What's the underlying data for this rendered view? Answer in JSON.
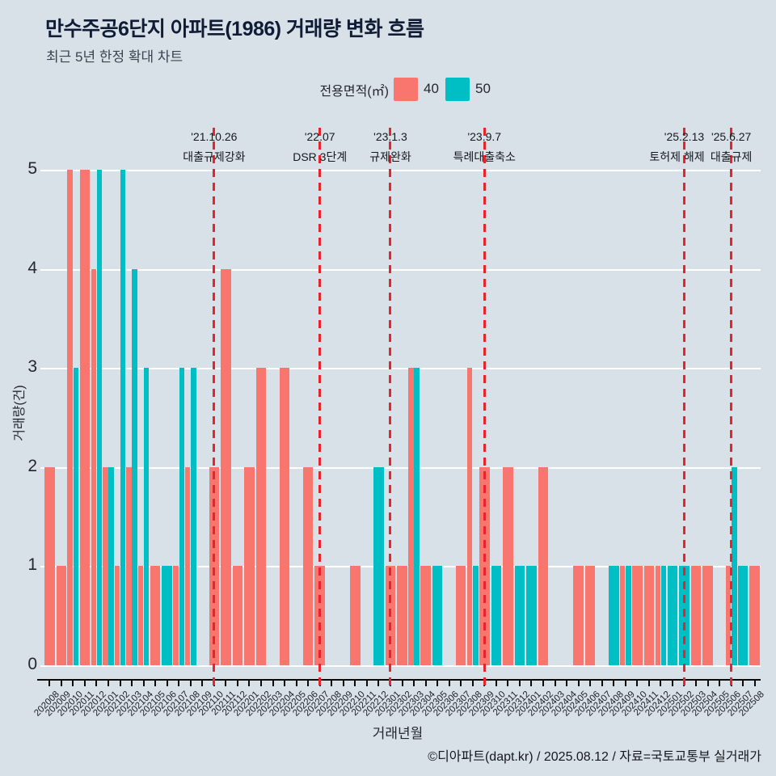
{
  "title": "만수주공6단지 아파트(1986) 거래량 변화 흐름",
  "subtitle": "최근 5년 한정 확대 차트",
  "legend": {
    "title": "전용면적(㎡)",
    "items": [
      {
        "label": "40",
        "color": "#f8766d"
      },
      {
        "label": "50",
        "color": "#00bfc4"
      }
    ]
  },
  "colors": {
    "series_40": "#f8766d",
    "series_50": "#00bfc4",
    "annotation_red": "#e8232b",
    "background": "#d9e1e8",
    "gridline": "#ffffff",
    "axis": "#0b0b0b"
  },
  "chart_data": {
    "type": "bar",
    "title": "만수주공6단지 아파트(1986) 거래량 변화 흐름",
    "xlabel": "거래년월",
    "ylabel": "거래량(건)",
    "ylim": [
      0,
      5
    ],
    "yticks": [
      0,
      1,
      2,
      3,
      4,
      5
    ],
    "grid": true,
    "legend_position": "top",
    "categories": [
      "202008",
      "202009",
      "202010",
      "202011",
      "202012",
      "202101",
      "202102",
      "202103",
      "202104",
      "202105",
      "202106",
      "202107",
      "202108",
      "202109",
      "202110",
      "202111",
      "202112",
      "202201",
      "202202",
      "202203",
      "202204",
      "202205",
      "202206",
      "202207",
      "202208",
      "202209",
      "202210",
      "202211",
      "202212",
      "202301",
      "202302",
      "202303",
      "202304",
      "202305",
      "202306",
      "202307",
      "202308",
      "202309",
      "202310",
      "202311",
      "202312",
      "202401",
      "202402",
      "202403",
      "202404",
      "202405",
      "202406",
      "202407",
      "202408",
      "202409",
      "202410",
      "202411",
      "202412",
      "202501",
      "202502",
      "202503",
      "202504",
      "202505",
      "202506",
      "202507",
      "202508"
    ],
    "series": [
      {
        "name": "40",
        "color": "#f8766d",
        "values": [
          2,
          1,
          5,
          5,
          4,
          2,
          1,
          2,
          1,
          1,
          0,
          1,
          2,
          0,
          2,
          4,
          1,
          2,
          3,
          0,
          3,
          0,
          2,
          1,
          0,
          0,
          1,
          0,
          0,
          1,
          1,
          3,
          1,
          0,
          0,
          1,
          3,
          2,
          0,
          2,
          0,
          0,
          2,
          0,
          0,
          1,
          1,
          0,
          0,
          1,
          1,
          1,
          1,
          0,
          0,
          1,
          1,
          0,
          1,
          0,
          1
        ]
      },
      {
        "name": "50",
        "color": "#00bfc4",
        "values": [
          0,
          0,
          3,
          0,
          5,
          2,
          5,
          4,
          3,
          0,
          1,
          3,
          3,
          0,
          0,
          0,
          0,
          0,
          0,
          0,
          0,
          0,
          0,
          0,
          0,
          0,
          0,
          0,
          2,
          0,
          0,
          3,
          0,
          1,
          0,
          0,
          1,
          0,
          1,
          0,
          1,
          1,
          0,
          0,
          0,
          0,
          0,
          0,
          1,
          1,
          0,
          0,
          1,
          1,
          1,
          0,
          0,
          0,
          2,
          1,
          0
        ]
      }
    ],
    "annotations": [
      {
        "month": "202110",
        "date": "'21.10.26",
        "label": "대출규제강화",
        "label_dx": 0
      },
      {
        "month": "202207",
        "date": "'22.07",
        "label": "DSR 3단계",
        "label_dx": 0
      },
      {
        "month": "202301",
        "date": "'23.1.3",
        "label": "규제완화",
        "label_dx": 0
      },
      {
        "month": "202309",
        "date": "'23.9.7",
        "label": "특례대출축소",
        "label_dx": 0
      },
      {
        "month": "202502",
        "date": "'25.2.13",
        "label": "토허제 해제",
        "label_dx": -9
      },
      {
        "month": "202506",
        "date": "'25.6.27",
        "label": "대출규제",
        "label_dx": 0
      }
    ]
  },
  "footer": "©디아파트(dapt.kr) / 2025.08.12 / 자료=국토교통부 실거래가"
}
